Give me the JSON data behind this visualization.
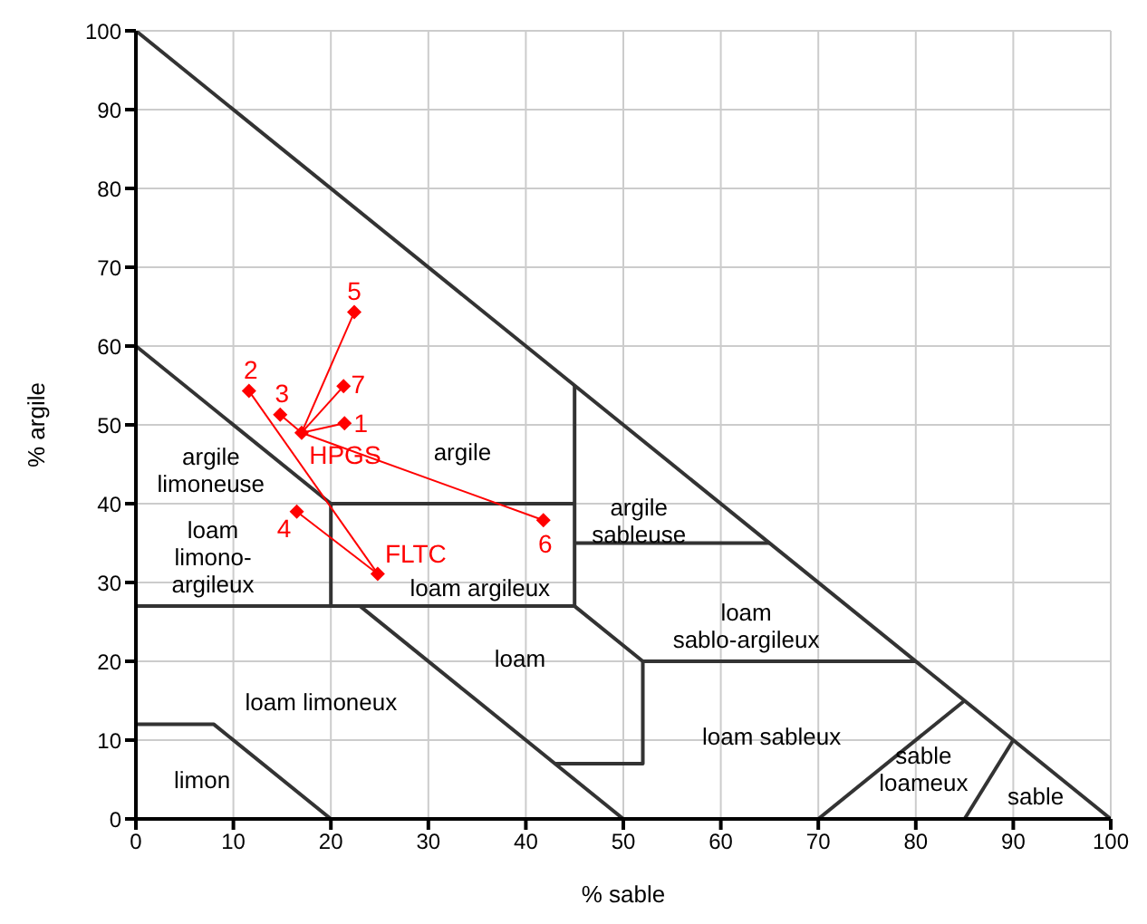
{
  "chart_data": {
    "type": "scatter",
    "xlabel": "% sable",
    "ylabel": "% argile",
    "xlim": [
      0,
      100
    ],
    "ylim": [
      0,
      100
    ],
    "xticks": [
      0,
      10,
      20,
      30,
      40,
      50,
      60,
      70,
      80,
      90,
      100
    ],
    "yticks": [
      0,
      10,
      20,
      30,
      40,
      50,
      60,
      70,
      80,
      90,
      100
    ],
    "grid": true,
    "series": [
      {
        "type": "line",
        "color": "#333333",
        "x": [
          0,
          100
        ],
        "values": [
          100,
          0
        ]
      },
      {
        "type": "line",
        "color": "#333333",
        "x": [
          0,
          20
        ],
        "values": [
          60,
          40
        ]
      },
      {
        "type": "line",
        "color": "#333333",
        "x": [
          20,
          45
        ],
        "values": [
          40,
          40
        ]
      },
      {
        "type": "line",
        "color": "#333333",
        "x": [
          45,
          45
        ],
        "values": [
          55,
          27
        ]
      },
      {
        "type": "line",
        "color": "#333333",
        "x": [
          20,
          20
        ],
        "values": [
          40,
          27
        ]
      },
      {
        "type": "line",
        "color": "#333333",
        "x": [
          0,
          45
        ],
        "values": [
          27,
          27
        ]
      },
      {
        "type": "line",
        "color": "#333333",
        "x": [
          45,
          65
        ],
        "values": [
          35,
          35
        ]
      },
      {
        "type": "line",
        "color": "#333333",
        "x": [
          45,
          52,
          80
        ],
        "values": [
          27,
          20,
          20
        ]
      },
      {
        "type": "line",
        "color": "#333333",
        "x": [
          52,
          52,
          43
        ],
        "values": [
          20,
          7,
          7
        ]
      },
      {
        "type": "line",
        "color": "#333333",
        "x": [
          23,
          50
        ],
        "values": [
          27,
          0
        ]
      },
      {
        "type": "line",
        "color": "#333333",
        "x": [
          0,
          8,
          20
        ],
        "values": [
          12,
          12,
          0
        ]
      },
      {
        "type": "line",
        "color": "#333333",
        "x": [
          70,
          85
        ],
        "values": [
          0,
          15
        ]
      },
      {
        "type": "line",
        "color": "#333333",
        "x": [
          85,
          90
        ],
        "values": [
          0,
          10
        ]
      },
      {
        "type": "line",
        "color": "#ff0000",
        "x": [
          17.0,
          21.4
        ],
        "values": [
          49.0,
          50.2
        ]
      },
      {
        "type": "line",
        "color": "#ff0000",
        "x": [
          17.0,
          14.8
        ],
        "values": [
          49.0,
          51.3
        ]
      },
      {
        "type": "line",
        "color": "#ff0000",
        "x": [
          17.0,
          22.4
        ],
        "values": [
          49.0,
          64.3
        ]
      },
      {
        "type": "line",
        "color": "#ff0000",
        "x": [
          17.0,
          21.3
        ],
        "values": [
          49.0,
          54.9
        ]
      },
      {
        "type": "line",
        "color": "#ff0000",
        "x": [
          17.0,
          41.8
        ],
        "values": [
          49.0,
          37.9
        ]
      },
      {
        "type": "line",
        "color": "#ff0000",
        "x": [
          24.8,
          11.6
        ],
        "values": [
          31.1,
          54.3
        ]
      },
      {
        "type": "line",
        "color": "#ff0000",
        "x": [
          24.8,
          16.5
        ],
        "values": [
          31.1,
          39.0
        ]
      },
      {
        "name": "1",
        "color": "#ff0000",
        "marker": "diamond",
        "x": [
          21.4
        ],
        "values": [
          50.2
        ]
      },
      {
        "name": "2",
        "color": "#ff0000",
        "marker": "diamond",
        "x": [
          11.6
        ],
        "values": [
          54.3
        ]
      },
      {
        "name": "3",
        "color": "#ff0000",
        "marker": "diamond",
        "x": [
          14.8
        ],
        "values": [
          51.3
        ]
      },
      {
        "name": "4",
        "color": "#ff0000",
        "marker": "diamond",
        "x": [
          16.5
        ],
        "values": [
          39.0
        ]
      },
      {
        "name": "5",
        "color": "#ff0000",
        "marker": "diamond",
        "x": [
          22.4
        ],
        "values": [
          64.3
        ]
      },
      {
        "name": "6",
        "color": "#ff0000",
        "marker": "diamond",
        "x": [
          41.8
        ],
        "values": [
          37.9
        ]
      },
      {
        "name": "7",
        "color": "#ff0000",
        "marker": "diamond",
        "x": [
          21.3
        ],
        "values": [
          54.9
        ]
      },
      {
        "name": "HPGS",
        "color": "#ff0000",
        "marker": "diamond",
        "x": [
          17.0
        ],
        "values": [
          49.0
        ]
      },
      {
        "name": "FLTC",
        "color": "#ff0000",
        "marker": "diamond",
        "x": [
          24.8
        ],
        "values": [
          31.1
        ]
      }
    ],
    "annotations": [
      "argile",
      "argile\nlimoneuse",
      "loam\nlimono-\nargileux",
      "loam argileux",
      "argile\nsableuse",
      "loam\nsablo-argileux",
      "loam",
      "loam limoneux",
      "loam sableux",
      "limon",
      "sable\nloameux",
      "sable"
    ]
  }
}
